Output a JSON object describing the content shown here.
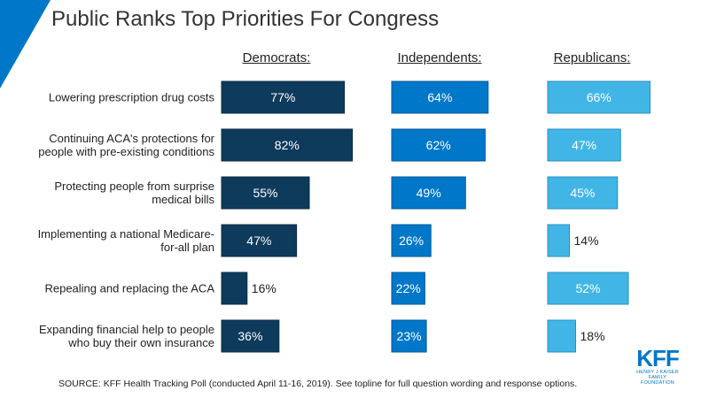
{
  "title": "Public Ranks Top Priorities For Congress",
  "source": "SOURCE: KFF Health Tracking Poll (conducted April 11-16, 2019). See topline for full question wording and response options.",
  "logo": {
    "mark": "KFF",
    "sub_line1": "HENRY J KAISER",
    "sub_line2": "FAMILY FOUNDATION"
  },
  "colors": {
    "democrats": "#0e3a5c",
    "independents": "#0077c8",
    "republicans": "#41b6e6",
    "corner": "#0077c8"
  },
  "chart_data": {
    "type": "bar",
    "title": "Public Ranks Top Priorities For Congress",
    "categories": [
      "Lowering prescription drug costs",
      "Continuing ACA's protections for people with pre-existing conditions",
      "Protecting people from surprise medical bills",
      "Implementing a national Medicare-for-all plan",
      "Repealing and replacing the ACA",
      "Expanding financial help to people who buy their own insurance"
    ],
    "category_lines": [
      [
        "Lowering prescription drug costs"
      ],
      [
        "Continuing ACA's protections for",
        "people with pre-existing conditions"
      ],
      [
        "Protecting people from surprise",
        "medical bills"
      ],
      [
        "Implementing a national Medicare-",
        "for-all plan"
      ],
      [
        "Repealing and replacing the ACA"
      ],
      [
        "Expanding financial help to people",
        "who buy their own insurance"
      ]
    ],
    "series": [
      {
        "name": "Democrats:",
        "values": [
          77,
          82,
          55,
          47,
          16,
          36
        ]
      },
      {
        "name": "Independents:",
        "values": [
          64,
          62,
          49,
          26,
          22,
          23
        ]
      },
      {
        "name": "Republicans:",
        "values": [
          66,
          47,
          45,
          14,
          52,
          18
        ]
      }
    ],
    "value_suffix": "%",
    "orientation": "horizontal",
    "xlim": [
      0,
      100
    ],
    "grid": false
  }
}
